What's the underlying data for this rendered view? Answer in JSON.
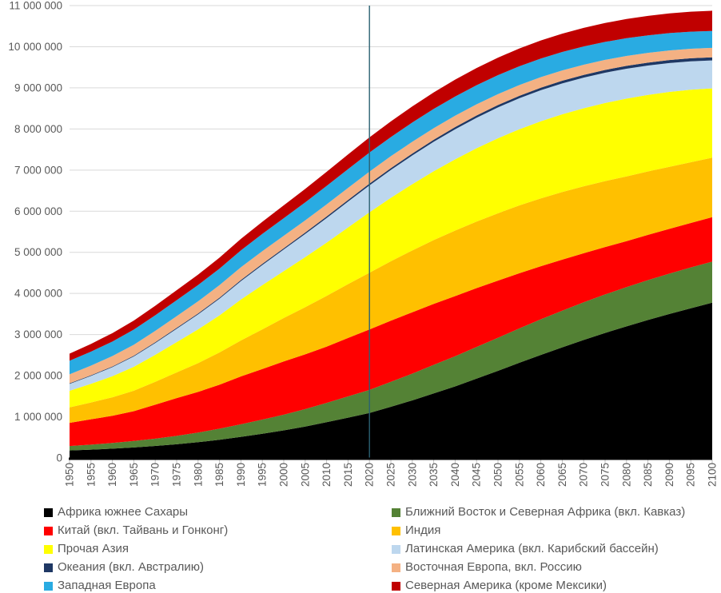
{
  "chart_data": {
    "type": "area",
    "stacked": true,
    "title": "",
    "xlabel": "",
    "ylabel": "",
    "units": "thousands of persons",
    "grid": "horizontal",
    "legend_position": "bottom, two columns",
    "ylim": [
      0,
      11000000
    ],
    "yticks": [
      0,
      1000000,
      2000000,
      3000000,
      4000000,
      5000000,
      6000000,
      7000000,
      8000000,
      9000000,
      10000000,
      11000000
    ],
    "x": [
      1950,
      1955,
      1960,
      1965,
      1970,
      1975,
      1980,
      1985,
      1990,
      1995,
      2000,
      2005,
      2010,
      2015,
      2020,
      2025,
      2030,
      2035,
      2040,
      2045,
      2050,
      2055,
      2060,
      2065,
      2070,
      2075,
      2080,
      2085,
      2090,
      2095,
      2100
    ],
    "marker_line": {
      "x": 2020,
      "color": "#2A6172"
    },
    "axis_color": "#000000",
    "grid_color": "#D9D9D9",
    "tick_color": "#BFBFBF",
    "label_color": "#595959",
    "series": [
      {
        "key": "sub-saharan-africa",
        "name": "Африка южнее Сахары",
        "color": "#000000",
        "values": [
          181000,
          201000,
          227000,
          256000,
          291000,
          333000,
          383000,
          443000,
          512000,
          589000,
          670000,
          763000,
          869000,
          980000,
          1094000,
          1245000,
          1400000,
          1570000,
          1740000,
          1930000,
          2118000,
          2315000,
          2505000,
          2690000,
          2870000,
          3040000,
          3200000,
          3355000,
          3500000,
          3640000,
          3775000
        ]
      },
      {
        "key": "mena",
        "name": "Ближний Восток и Северная Африка (вкл. Кавказ)",
        "color": "#548235",
        "values": [
          108000,
          121000,
          137000,
          156000,
          178000,
          203000,
          233000,
          268000,
          306000,
          344000,
          383000,
          425000,
          470000,
          517000,
          560000,
          605000,
          650000,
          693000,
          733000,
          770000,
          805000,
          837000,
          866000,
          892000,
          915000,
          936000,
          954000,
          969000,
          982000,
          992000,
          1000000
        ]
      },
      {
        "key": "china",
        "name": "Китай (вкл. Тайвань и Гонконг)",
        "color": "#FF0000",
        "values": [
          564000,
          618000,
          660000,
          724000,
          827000,
          920000,
          990000,
          1070000,
          1165000,
          1230000,
          1293000,
          1330000,
          1368000,
          1420000,
          1471000,
          1488000,
          1492000,
          1483000,
          1462000,
          1429000,
          1388000,
          1340000,
          1290000,
          1240000,
          1193000,
          1152000,
          1118000,
          1100000,
          1088000,
          1082000,
          1080000
        ]
      },
      {
        "key": "india",
        "name": "Индия",
        "color": "#FFC000",
        "values": [
          376000,
          409000,
          450000,
          499000,
          555000,
          623000,
          699000,
          784000,
          873000,
          964000,
          1057000,
          1148000,
          1234000,
          1310000,
          1380000,
          1445000,
          1504000,
          1553000,
          1593000,
          1620000,
          1639000,
          1650000,
          1651000,
          1644000,
          1628000,
          1604000,
          1575000,
          1543000,
          1510000,
          1478000,
          1447000
        ]
      },
      {
        "key": "other-asia",
        "name": "Прочая Азия",
        "color": "#FFFF00",
        "values": [
          403000,
          453000,
          514000,
          581000,
          655000,
          737000,
          822000,
          901000,
          996000,
          1075000,
          1139000,
          1216000,
          1293000,
          1378000,
          1468000,
          1543000,
          1611000,
          1673000,
          1734000,
          1781000,
          1825000,
          1851000,
          1875000,
          1890000,
          1897000,
          1899000,
          1892000,
          1862000,
          1822000,
          1763000,
          1685000
        ]
      },
      {
        "key": "latin-america",
        "name": "Латинская Америка (вкл. Карибский бассейн)",
        "color": "#BDD7EE",
        "values": [
          169000,
          193000,
          220000,
          252000,
          287000,
          325000,
          364000,
          406000,
          447000,
          488000,
          527000,
          564000,
          600000,
          628000,
          654000,
          677000,
          698000,
          716000,
          731000,
          743000,
          750000,
          754000,
          755000,
          752000,
          746000,
          737000,
          726000,
          713000,
          700000,
          690000,
          680000
        ]
      },
      {
        "key": "oceania",
        "name": "Океания (вкл. Австралию)",
        "color": "#1F3864",
        "values": [
          13000,
          14000,
          16000,
          18000,
          20000,
          22000,
          23000,
          25000,
          27000,
          29000,
          31000,
          34000,
          37000,
          40000,
          43000,
          45000,
          48000,
          50000,
          53000,
          55000,
          57000,
          60000,
          62000,
          64000,
          66000,
          68000,
          70000,
          71000,
          73000,
          74000,
          75000
        ]
      },
      {
        "key": "eastern-europe",
        "name": "Восточная Европа, вкл. Россию",
        "color": "#F4B183",
        "values": [
          220000,
          236000,
          253000,
          266000,
          276000,
          285000,
          295000,
          306000,
          311000,
          310000,
          304000,
          298000,
          295000,
          294000,
          293000,
          290000,
          286000,
          281000,
          276000,
          271000,
          266000,
          261000,
          256000,
          252000,
          248000,
          244000,
          241000,
          238000,
          235000,
          232000,
          230000
        ]
      },
      {
        "key": "western-europe",
        "name": "Западная Европа",
        "color": "#29ABE2",
        "values": [
          329000,
          341000,
          354000,
          369000,
          380000,
          389000,
          395000,
          401000,
          410000,
          419000,
          427000,
          437000,
          448000,
          456000,
          463000,
          466000,
          468000,
          468000,
          467000,
          465000,
          462000,
          458000,
          453000,
          448000,
          443000,
          437000,
          431000,
          426000,
          421000,
          416000,
          412000
        ]
      },
      {
        "key": "north-america",
        "name": "Северная Америка (кроме Мексики)",
        "color": "#C00000",
        "values": [
          173000,
          187000,
          204000,
          219000,
          231000,
          242000,
          254000,
          267000,
          280000,
          296000,
          312000,
          327000,
          343000,
          357000,
          369000,
          380000,
          391000,
          401000,
          410000,
          418000,
          425000,
          432000,
          439000,
          446000,
          453000,
          460000,
          467000,
          473000,
          479000,
          485000,
          491000
        ]
      }
    ]
  },
  "legend": {
    "columns": [
      [
        0,
        2,
        4,
        6,
        8
      ],
      [
        1,
        3,
        5,
        7,
        9
      ]
    ]
  }
}
